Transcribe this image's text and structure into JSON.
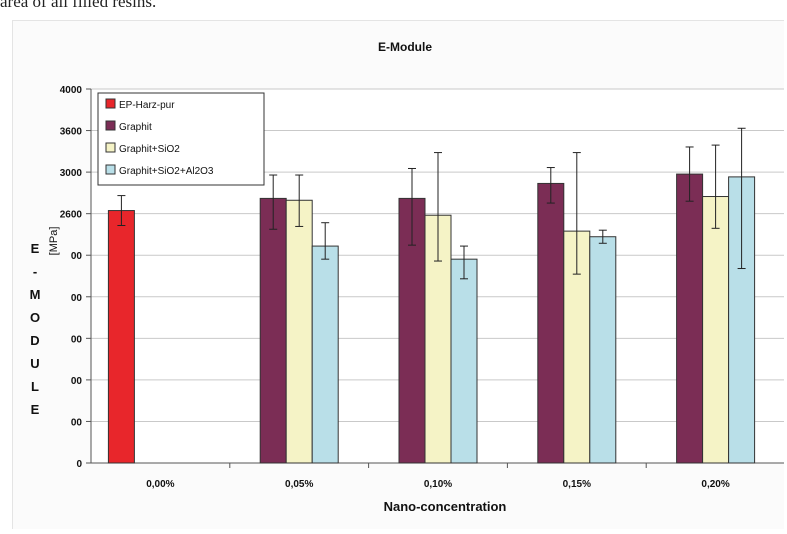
{
  "caption": "area of all filled resins.",
  "chart_data": {
    "type": "bar",
    "title": "E-Module",
    "xlabel": "Nano-concentration",
    "ylabel_unit": "[MPa]",
    "ylabel_letters": [
      "E",
      "-",
      "M",
      "O",
      "D",
      "U",
      "L",
      "E"
    ],
    "ylim": [
      0,
      4000
    ],
    "yticks": [
      "0",
      "00",
      "00",
      "00",
      "00",
      "00",
      "2600",
      "3000",
      "3600",
      "4000"
    ],
    "grid": true,
    "legend_position": "top-left",
    "categories": [
      "0,00%",
      "0,05%",
      "0,10%",
      "0,15%",
      "0,20%"
    ],
    "series": [
      {
        "name": "EP-Harz-pur",
        "color": "#e8262b",
        "values": [
          2700,
          null,
          null,
          null,
          null
        ],
        "err_low": [
          2540,
          null,
          null,
          null,
          null
        ],
        "err_high": [
          2860,
          null,
          null,
          null,
          null
        ]
      },
      {
        "name": "Graphit",
        "color": "#7b2d55",
        "values": [
          null,
          2830,
          2830,
          2990,
          3090
        ],
        "err_low": [
          null,
          2500,
          2330,
          2780,
          2800
        ],
        "err_high": [
          null,
          3080,
          3150,
          3160,
          3380
        ]
      },
      {
        "name": "Graphit+SiO2",
        "color": "#f5f3c6",
        "values": [
          null,
          2810,
          2650,
          2480,
          2850
        ],
        "err_low": [
          null,
          2530,
          2160,
          2020,
          2510
        ],
        "err_high": [
          null,
          3080,
          3320,
          3320,
          3400
        ]
      },
      {
        "name": "Graphit+SiO2+Al2O3",
        "color": "#b9dfe8",
        "values": [
          null,
          2320,
          2180,
          2420,
          3060
        ],
        "err_low": [
          null,
          2180,
          1970,
          2350,
          2080
        ],
        "err_high": [
          null,
          2570,
          2320,
          2490,
          3580
        ]
      }
    ]
  }
}
